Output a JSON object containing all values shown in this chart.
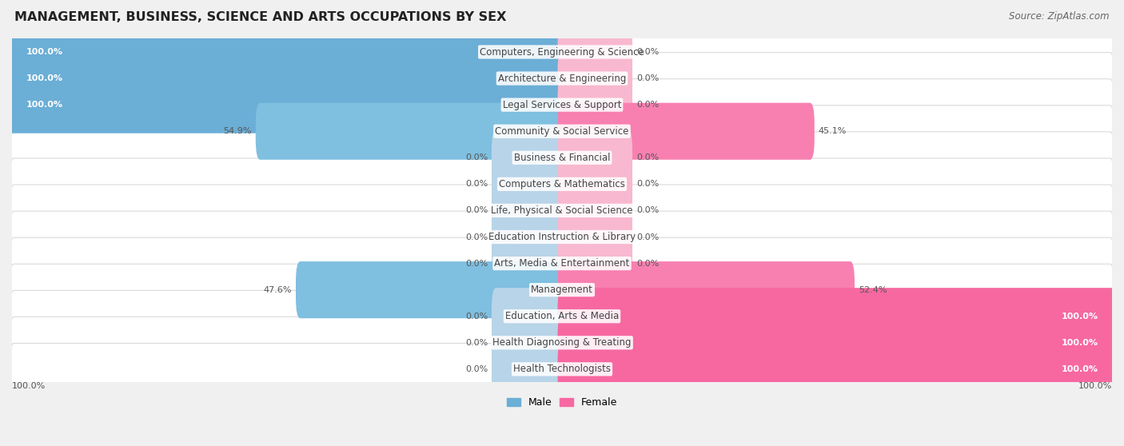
{
  "title": "MANAGEMENT, BUSINESS, SCIENCE AND ARTS OCCUPATIONS BY SEX",
  "source": "Source: ZipAtlas.com",
  "categories": [
    "Computers, Engineering & Science",
    "Architecture & Engineering",
    "Legal Services & Support",
    "Community & Social Service",
    "Business & Financial",
    "Computers & Mathematics",
    "Life, Physical & Social Science",
    "Education Instruction & Library",
    "Arts, Media & Entertainment",
    "Management",
    "Education, Arts & Media",
    "Health Diagnosing & Treating",
    "Health Technologists"
  ],
  "male_pct": [
    100.0,
    100.0,
    100.0,
    54.9,
    0.0,
    0.0,
    0.0,
    0.0,
    0.0,
    47.6,
    0.0,
    0.0,
    0.0
  ],
  "female_pct": [
    0.0,
    0.0,
    0.0,
    45.1,
    0.0,
    0.0,
    0.0,
    0.0,
    0.0,
    52.4,
    100.0,
    100.0,
    100.0
  ],
  "male_color_full": "#6baed6",
  "male_color_partial": "#7fbfe0",
  "male_color_zero": "#b8d4e8",
  "female_color_full": "#f768a1",
  "female_color_partial": "#f880b0",
  "female_color_zero": "#f8b8d0",
  "row_bg": "#ffffff",
  "row_border": "#d5d5d5",
  "fig_bg": "#f0f0f0",
  "text_dark": "#444444",
  "text_white": "#ffffff",
  "pct_outside": "#555555",
  "title_fontsize": 11.5,
  "label_fontsize": 8.5,
  "pct_fontsize": 8.0,
  "legend_fontsize": 9.0,
  "source_fontsize": 8.5,
  "stub_pct": 12.0,
  "bar_height": 0.55
}
